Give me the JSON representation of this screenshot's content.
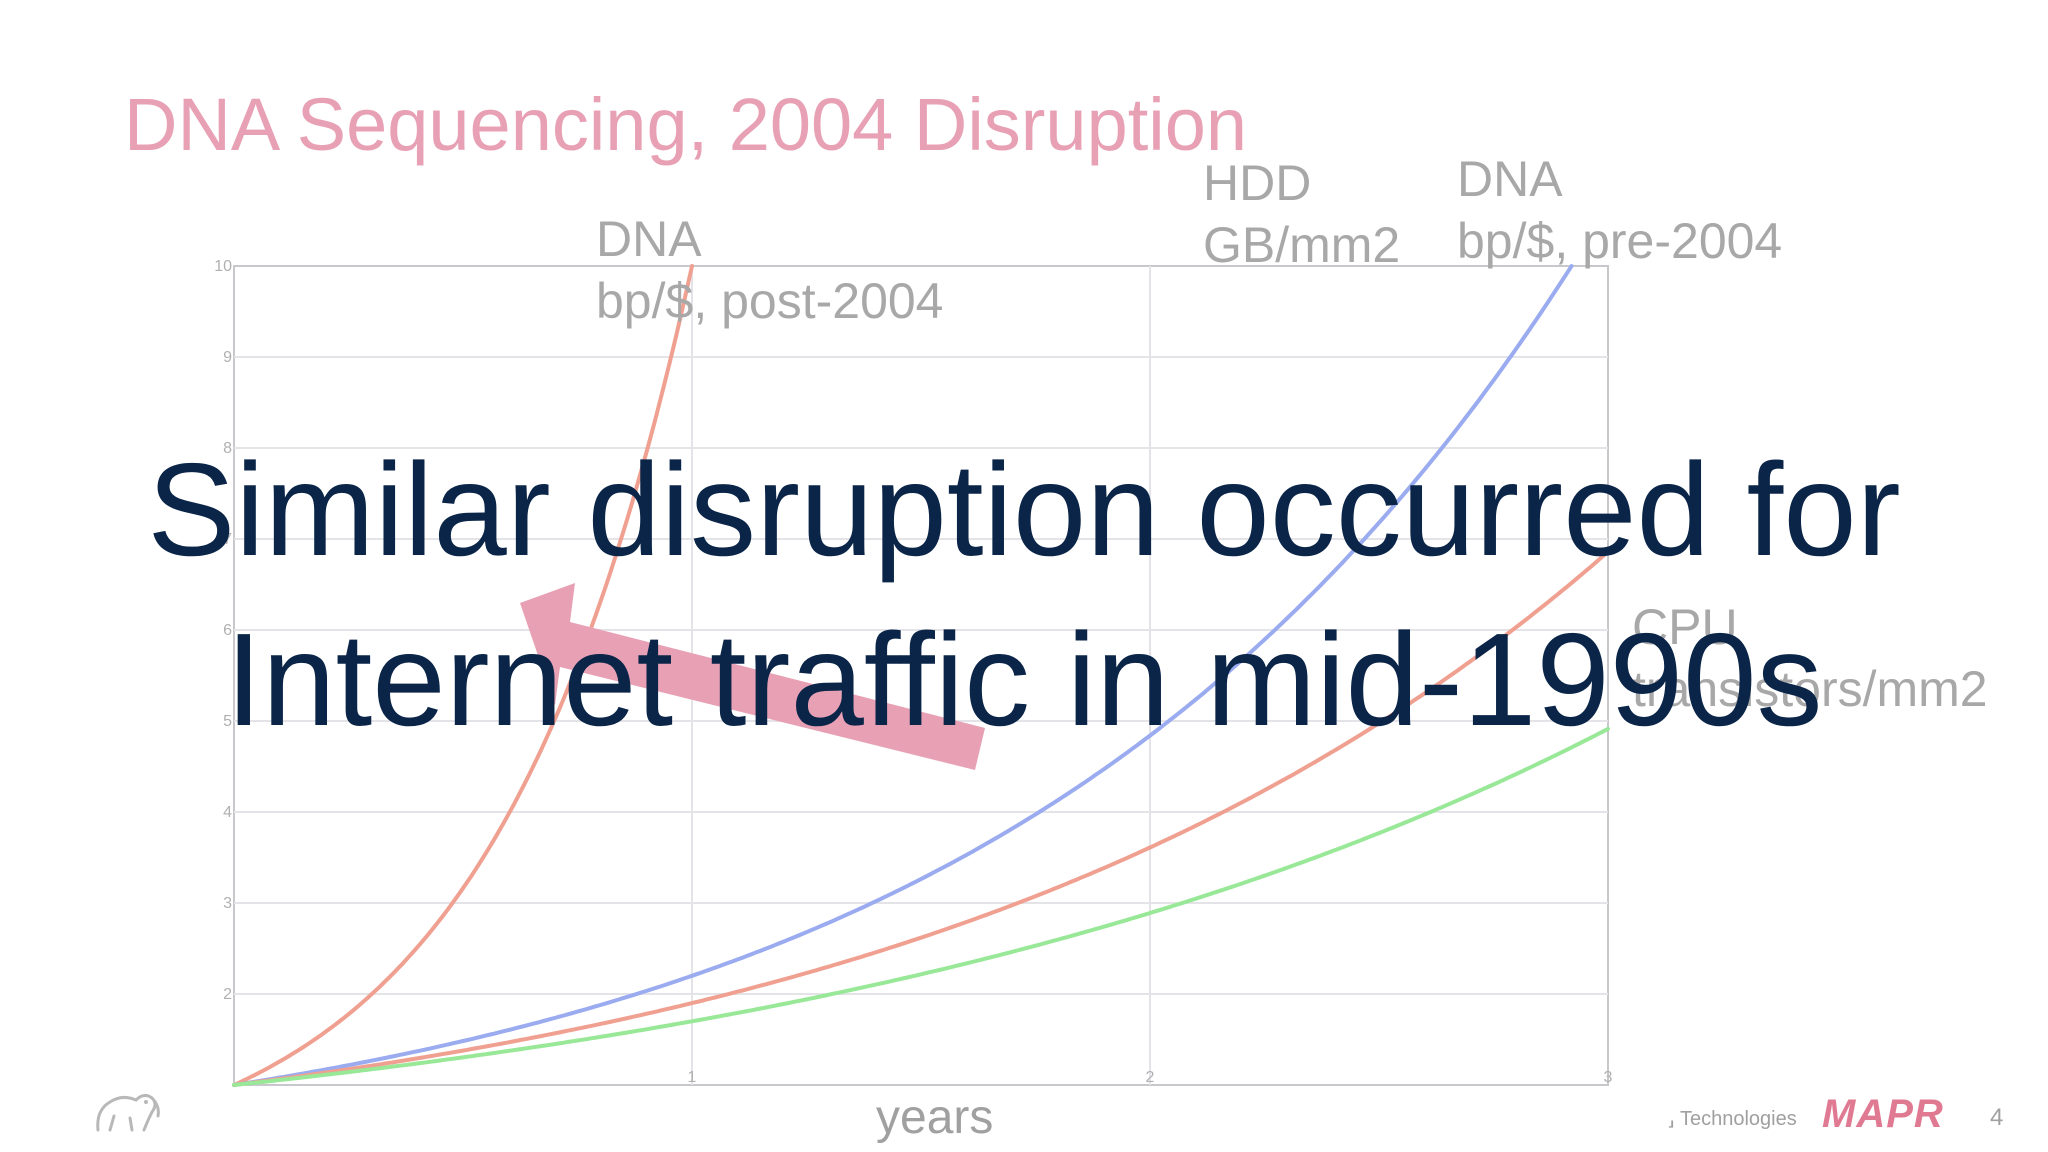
{
  "slide": {
    "title": "DNA Sequencing, 2004 Disruption",
    "overlay_lines": [
      "Similar disruption occurred for",
      "Internet traffic in mid-1990s"
    ],
    "footer_company": "⸥ Technologies",
    "footer_brand": "MAPR",
    "page_number": "4",
    "colors": {
      "title": "#e8a0b4",
      "overlay_text": "#0b2548",
      "arrow": "#e8a0b4",
      "dna_post": "#f0a090",
      "hdd": "#9aabf0",
      "dna_pre": "#f0a090",
      "cpu": "#98e898"
    },
    "icons": [
      "elephant-logo-icon",
      "left-arrow-icon"
    ]
  },
  "chart_data": {
    "type": "line",
    "xlabel": "years",
    "ylabel": "",
    "x_ticks": [
      "",
      "1",
      "2",
      "3"
    ],
    "y_ticks": [
      "",
      "2",
      "3",
      "4",
      "5",
      "6",
      "7",
      "8",
      "9",
      "10"
    ],
    "xlim": [
      0,
      3
    ],
    "ylim": [
      1,
      10
    ],
    "grid": true,
    "series": [
      {
        "name": "DNA bp/$, post-2004",
        "label_lines": [
          "DNA",
          "bp/$, post-2004"
        ],
        "growth_per_year": 10.0,
        "color": "#f0a090"
      },
      {
        "name": "HDD GB/mm2",
        "label_lines": [
          "HDD",
          "GB/mm2"
        ],
        "growth_per_year": 2.2,
        "color": "#9aabf0"
      },
      {
        "name": "DNA bp/$, pre-2004",
        "label_lines": [
          "DNA",
          "bp/$, pre-2004"
        ],
        "growth_per_year": 1.9,
        "color": "#f0a090"
      },
      {
        "name": "CPU transistors/mm2",
        "label_lines": [
          "CPU",
          "transistors/mm2"
        ],
        "growth_per_year": 1.7,
        "color": "#98e898"
      }
    ]
  }
}
